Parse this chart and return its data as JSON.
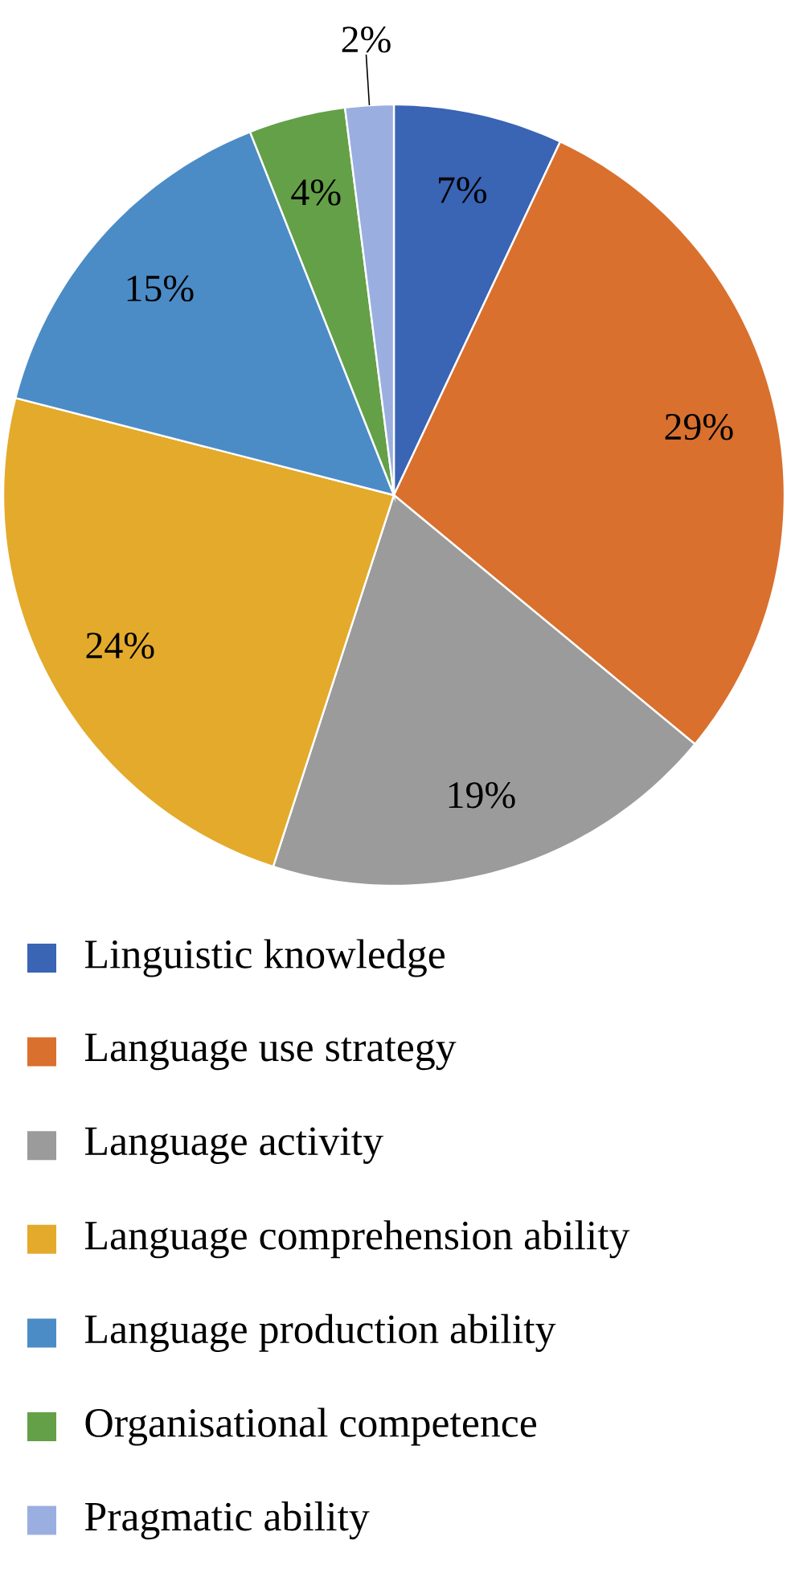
{
  "chart_data": {
    "type": "pie",
    "categories": [
      "Linguistic knowledge",
      "Language use strategy",
      "Language activity",
      "Language comprehension ability",
      "Language production ability",
      "Organisational competence",
      "Pragmatic ability"
    ],
    "values": [
      7,
      29,
      19,
      24,
      15,
      4,
      2
    ],
    "colors": [
      "#3a64b4",
      "#d9702e",
      "#9b9b9b",
      "#e3aa2b",
      "#4b8cc7",
      "#64a047",
      "#9aaee0"
    ],
    "value_labels": [
      "7%",
      "29%",
      "19%",
      "24%",
      "15%",
      "4%",
      "2%"
    ],
    "legend": "bottom"
  }
}
